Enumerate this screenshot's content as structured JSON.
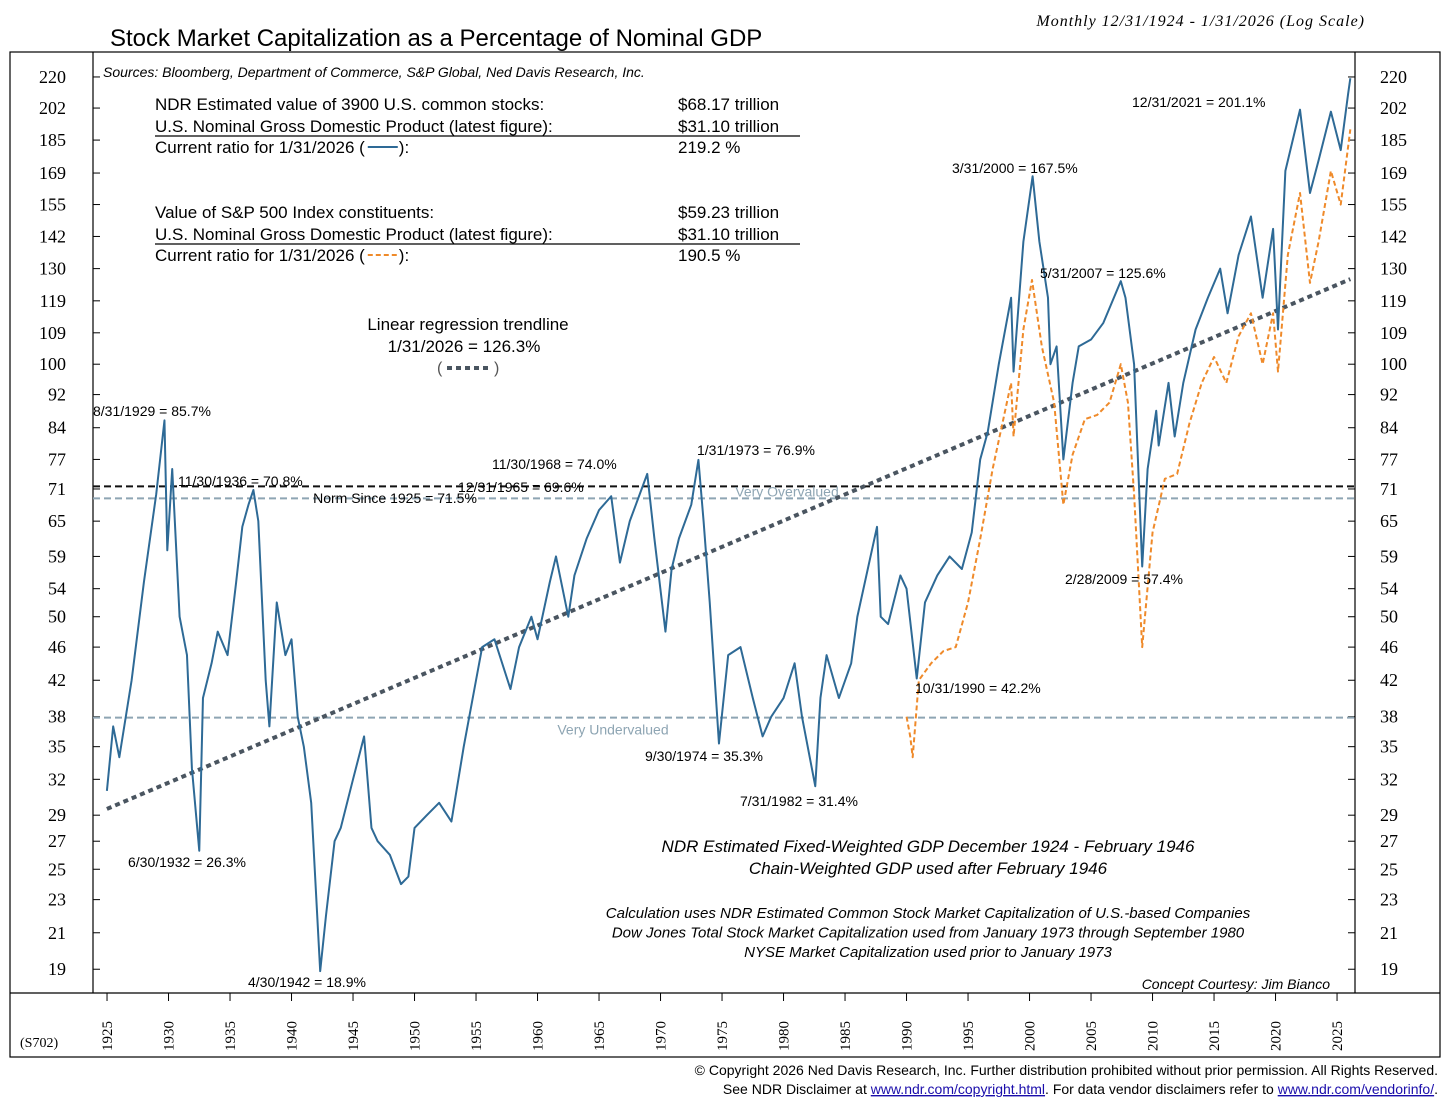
{
  "chart_data": {
    "type": "line",
    "title": "Stock Market Capitalization as a Percentage of Nominal GDP",
    "subtitle": "Monthly 12/31/1924 - 1/31/2026 (Log Scale)",
    "sources": "Sources: Bloomberg, Department of Commerce, S&P Global, Ned Davis Research, Inc.",
    "code": "(S702)",
    "log_scale": true,
    "xlim": [
      1923.86,
      2026.46
    ],
    "ylim": [
      17.8,
      235.6
    ],
    "xticks": [
      1925,
      1930,
      1935,
      1940,
      1945,
      1950,
      1955,
      1960,
      1965,
      1970,
      1975,
      1980,
      1985,
      1990,
      1995,
      2000,
      2005,
      2010,
      2015,
      2020,
      2025
    ],
    "yticks": [
      19,
      21,
      23,
      25,
      27,
      29,
      32,
      35,
      38,
      42,
      46,
      50,
      54,
      59,
      65,
      71,
      77,
      84,
      92,
      100,
      109,
      119,
      130,
      142,
      155,
      169,
      185,
      202,
      220
    ],
    "series": [
      {
        "name": "U.S. common stocks",
        "color": "#2e6a96",
        "dash": "solid",
        "x": [
          1924.99,
          1925.5,
          1926,
          1927,
          1928,
          1929.0,
          1929.67,
          1929.9,
          1930.3,
          1930.9,
          1931.5,
          1931.9,
          1932.5,
          1932.8,
          1933.5,
          1934,
          1934.8,
          1935.5,
          1936,
          1936.5,
          1936.9,
          1937.3,
          1937.9,
          1938.2,
          1938.8,
          1939.5,
          1940,
          1940.5,
          1941,
          1941.6,
          1942.33,
          1942.8,
          1943.5,
          1944,
          1945,
          1945.9,
          1946.5,
          1947,
          1948,
          1948.9,
          1949.5,
          1950,
          1951,
          1952,
          1953,
          1954,
          1955,
          1955.5,
          1956.5,
          1957.8,
          1958.5,
          1959.5,
          1960,
          1961,
          1961.5,
          1962.5,
          1963,
          1964,
          1965,
          1965.99,
          1966.7,
          1967.5,
          1968.92,
          1969.5,
          1970.4,
          1970.9,
          1971.5,
          1972.5,
          1973.08,
          1973.5,
          1974.0,
          1974.75,
          1975.5,
          1976.5,
          1977.5,
          1978.3,
          1979,
          1980,
          1980.9,
          1981.5,
          1982.58,
          1983,
          1983.5,
          1984.5,
          1985.5,
          1986,
          1987.6,
          1987.9,
          1988.5,
          1989.5,
          1990.0,
          1990.83,
          1991.5,
          1992.5,
          1993.5,
          1994.5,
          1995.3,
          1995.99,
          1996.6,
          1997.5,
          1998.5,
          1998.7,
          1999.5,
          2000.25,
          2000.8,
          2001.5,
          2001.7,
          2002.2,
          2002.75,
          2003.5,
          2004,
          2005,
          2006,
          2007.42,
          2007.8,
          2008.5,
          2009.16,
          2009.6,
          2010.3,
          2010.5,
          2011.3,
          2011.8,
          2012.5,
          2013.5,
          2014.5,
          2015.5,
          2016.1,
          2017,
          2018,
          2018.95,
          2019.8,
          2020.2,
          2020.8,
          2021.99,
          2022.8,
          2023.5,
          2024.5,
          2025.3,
          2025.9,
          2026.08
        ],
        "values": [
          31,
          37,
          34,
          42,
          55,
          70,
          85.7,
          60,
          75,
          50,
          45,
          33,
          26.3,
          40,
          44,
          48,
          45,
          55,
          64,
          68,
          70.8,
          65,
          42,
          37,
          52,
          45,
          47,
          38,
          35,
          30,
          18.9,
          22,
          27,
          28,
          32,
          36,
          28,
          27,
          26,
          24,
          24.5,
          28,
          29,
          30,
          28.5,
          35,
          42,
          46,
          47,
          41,
          46,
          50,
          47,
          55,
          59,
          50,
          56,
          62,
          67,
          69.6,
          58,
          65,
          74.0,
          62,
          48,
          57,
          62,
          68,
          76.9,
          65,
          52,
          35.3,
          45,
          46,
          40,
          36,
          38,
          40,
          44,
          38,
          31.4,
          40,
          45,
          40,
          44,
          50,
          64,
          50,
          49,
          56,
          54,
          42.2,
          52,
          56,
          59,
          57,
          63,
          77,
          83,
          100,
          120,
          98,
          140,
          167.5,
          140,
          120,
          100,
          105,
          77,
          95,
          105,
          107,
          112,
          125.6,
          120,
          100,
          57.4,
          75,
          88,
          80,
          95,
          82,
          95,
          110,
          120,
          130,
          115,
          135,
          150,
          120,
          145,
          110,
          170,
          201.1,
          160,
          175,
          200,
          180,
          210,
          219.2
        ]
      },
      {
        "name": "S&P 500 Index constituents",
        "color": "#ef8a2a",
        "dash": "dashed",
        "x": [
          1990.0,
          1990.3,
          1990.5,
          1991,
          1992,
          1993,
          1994,
          1995,
          1996,
          1997,
          1998.5,
          1998.7,
          1999.5,
          2000.2,
          2001,
          2002,
          2002.75,
          2003.5,
          2004.5,
          2005.5,
          2006.5,
          2007.42,
          2008,
          2008.5,
          2009.16,
          2010,
          2011,
          2012,
          2013,
          2014,
          2015,
          2016,
          2017,
          2018,
          2018.95,
          2019.8,
          2020.2,
          2021,
          2021.99,
          2022.8,
          2023.5,
          2024.5,
          2025.3,
          2026.08
        ],
        "values": [
          38,
          36,
          34,
          42,
          44,
          45.5,
          46,
          52,
          62,
          75,
          95,
          82,
          110,
          126,
          105,
          90,
          68,
          78,
          86,
          87,
          90,
          100,
          90,
          70,
          46,
          63,
          73,
          74,
          85,
          95,
          102,
          95,
          108,
          115,
          100,
          115,
          98,
          135,
          160,
          125,
          140,
          170,
          155,
          190.5
        ]
      }
    ],
    "trendline": {
      "color": "#4a5560",
      "x": [
        1924.99,
        2026.08
      ],
      "values": [
        29.5,
        126.3
      ],
      "label": "Linear regression trendline",
      "value_label": "1/31/2026 = 126.3%",
      "open": "(",
      "close": ")"
    },
    "norm": {
      "label": "Norm Since 1925 = 71.5%",
      "value": 71.5,
      "color": "#111111"
    },
    "bands": [
      {
        "label": "Very Overvalued",
        "value": 69.2,
        "color": "#8ea5b3"
      },
      {
        "label": "Very Undervalued",
        "value": 37.9,
        "color": "#8ea5b3"
      }
    ],
    "info_table": [
      {
        "label": "NDR Estimated value of 3900 U.S. common stocks:",
        "value": "$68.17 trillion"
      },
      {
        "label": "U.S. Nominal Gross Domestic Product (latest figure):",
        "value": "$31.10 trillion",
        "underline": true
      },
      {
        "label": "Current ratio for 1/31/2026 (",
        "close": "):",
        "series": 0,
        "value": "219.2 %"
      },
      {
        "label": "Value of S&P 500 Index constituents:",
        "value": "$59.23 trillion"
      },
      {
        "label": "U.S. Nominal Gross Domestic Product (latest figure):",
        "value": "$31.10 trillion",
        "underline": true
      },
      {
        "label": "Current ratio for 1/31/2026 (",
        "close": "):",
        "series": 1,
        "value": "190.5 %"
      }
    ],
    "annotations": [
      "8/31/1929 = 85.7%",
      "11/30/1936 = 70.8%",
      "6/30/1932 = 26.3%",
      "4/30/1942 = 18.9%",
      "12/31/1965 = 69.6%",
      "11/30/1968 = 74.0%",
      "1/31/1973 = 76.9%",
      "9/30/1974 = 35.3%",
      "7/31/1982 = 31.4%",
      "10/31/1990 = 42.2%",
      "3/31/2000 = 167.5%",
      "5/31/2007 = 125.6%",
      "2/28/2009 = 57.4%",
      "12/31/2021 = 201.1%"
    ],
    "notes": [
      "NDR Estimated Fixed-Weighted GDP December 1924 - February 1946",
      "Chain-Weighted GDP used after February 1946"
    ],
    "method_notes": [
      "Calculation uses NDR Estimated Common Stock Market Capitalization of U.S.-based Companies",
      "Dow Jones Total Stock Market Capitalization used from January 1973 through September 1980",
      "NYSE Market Capitalization used prior to January 1973"
    ],
    "credit": "Concept Courtesy: Jim Bianco",
    "copyright": "© Copyright 2026 Ned Davis Research, Inc.  Further distribution prohibited without prior permission.  All Rights Reserved.",
    "disclaimer": [
      {
        "text": "See NDR Disclaimer at "
      },
      {
        "text": "www.ndr.com/copyright.html",
        "link": true
      },
      {
        "text": ". For data vendor disclaimers refer to "
      },
      {
        "text": "www.ndr.com/vendorinfo/",
        "link": true
      },
      {
        "text": "."
      }
    ]
  }
}
